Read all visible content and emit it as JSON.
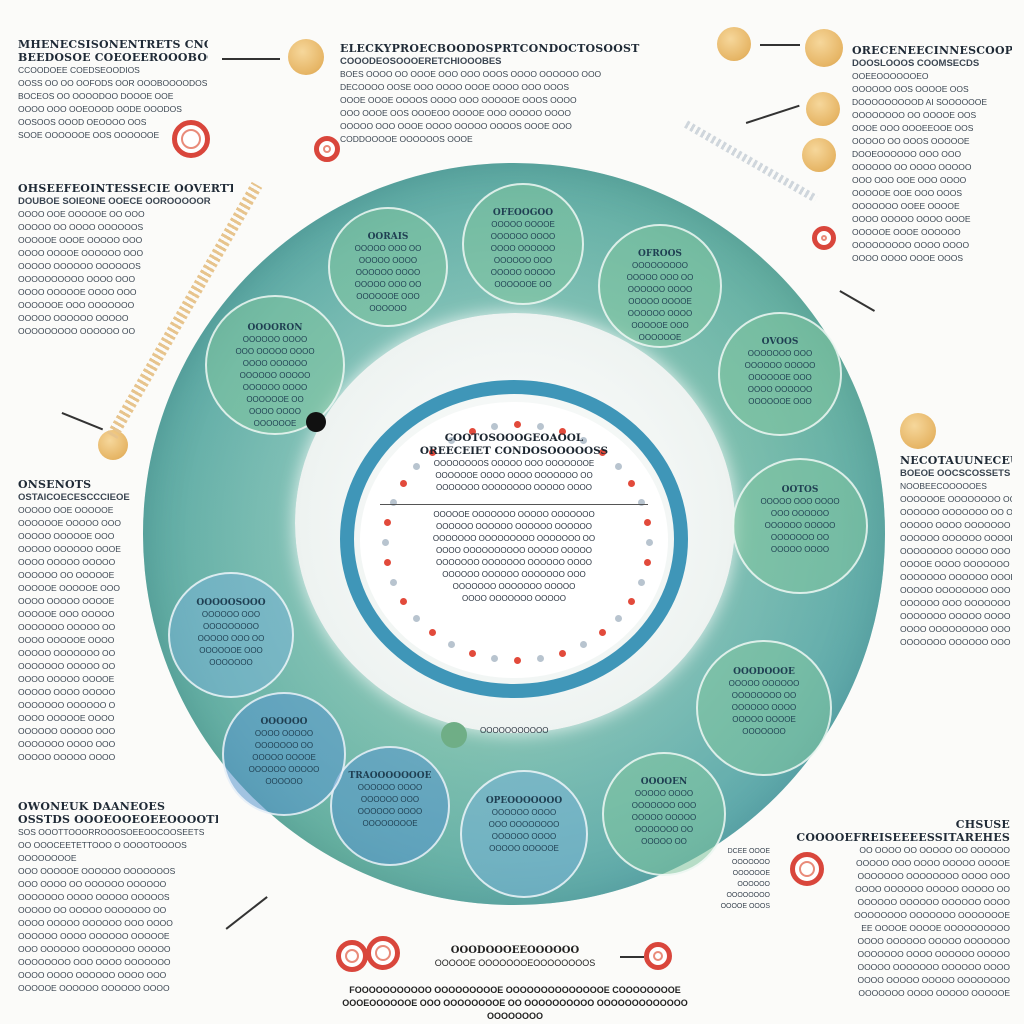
{
  "colors": {
    "ring_teal": "#5aa8a6",
    "ring_green": "#80c49e",
    "ring_blue": "#3f96b8",
    "gold": "#e6b565",
    "red": "#d9463c"
  },
  "panels": {
    "top_left": {
      "title": "MHENECSISONENTRETS CNOTIES",
      "sub": "BEEDOSOE COEOEEROOOBOORY",
      "lines": [
        "CCOODOEE COEDSEOODIOS",
        "OOSS OO OO OOFODS OOR OOOBOOOODOS",
        "BOCEOS OO OOOODOO DOOOE OOE",
        "OOOO OOO OOEOOOD OODE OOODOS",
        "OOSOOS OOOD OEOOOO OOS",
        "SOOE OOOOOOE OOS OOOOOOE"
      ]
    },
    "top_center": {
      "title": "ELECKYPROECBOODOSPRTCONDOCTOSOOST",
      "sub": "COOODEOSOOOERETCHIOOOBES",
      "lines": [
        "BOES OOOO OO OOOE OOO OOO OOOS OOOO OOOOOO OOO",
        "DECOOOO OOSE OOO OOOO OOOE OOOO OOO OOOS",
        "OOOE OOOE OOOOS OOOO OOO OOOOOE OOOS OOOO",
        "OOO OOOE OOS OOOEOO OOOOE OOO OOOOO OOOO",
        "OOOOO OOO OOOE OOOO OOOOO OOOOS OOOE OOO",
        "CODDOOOOE OOOOOOS OOOE"
      ]
    },
    "top_right": {
      "title": "ORECENEECINNESCOOPLATSS",
      "sub": "DOOSLOOOS COOMSECDS",
      "lines": [
        "OOEEOOOOOOEO",
        "OOOOOO OOS OOOOE OOS",
        "DOOOOOOOOOD AI SOOOOOOE",
        "OOOOOOOO OO OOOOE OOS",
        "OOOE OOO OOOEEOOE OOS",
        "OOOOO OO OOOS OOOOOE",
        "DOOEOOOOOO OOO OOO",
        "OOOOOO OO OOOO OOOOO",
        "OOO OOO OOE OOO OOOO",
        "OOOOOE OOE OOO OOOS",
        "OOOOOOO OOEE OOOOE",
        "OOOO OOOOO OOOO OOOE",
        "OOOOOE OOOE OOOOOO",
        "OOOOOOOOO OOOO OOOO",
        "OOOO OOOO OOOE OOOS"
      ]
    },
    "left_mid": {
      "title": "OHSEEFEOINTESSECIE OOVERTTITHECOTTS",
      "sub": "DOUBOE SOIEONE OOECE OOROOOOOR",
      "lines": [
        "OOOO OOE OOOOOE OO OOO",
        "OOOOO OO OOOO OOOOOOS",
        "OOOOOE OOOE OOOOO OOO",
        "OOOO OOOOE OOOOOO OOO",
        "OOOOO OOOOOO OOOOOOS",
        "OOOOOOOOOO OOOO OOO",
        "OOOO OOOOOE OOOO OOO",
        "OOOOOOE OOO OOOOOOO",
        "OOOOO OOOOOO OOOOO",
        "OOOOOOOOO OOOOOO OO"
      ]
    },
    "left_lower": {
      "title": "ONSENOTS",
      "sub": "OSTAICOECESCCCIEOE",
      "lines": [
        "OOOOO OOE OOOOOE",
        "OOOOOOE OOOOO OOO",
        "OOOOO OOOOOE OOO",
        "OOOOO OOOOOO OOOE",
        "OOOO OOOOO OOOOO",
        "OOOOOO OO OOOOOE",
        "OOOOOE OOOOOE OOO",
        "OOOO OOOOO OOOOE",
        "OOOOOE OOO OOOOO",
        "OOOOOOO OOOOO OO",
        "OOOO OOOOOE OOOO",
        "OOOOO OOOOOOO OO",
        "OOOOOOO OOOOO OO",
        "OOOO OOOOO OOOOE",
        "OOOOO OOOO OOOOO",
        "OOOOOOO OOOOOO O",
        "OOOO OOOOOE OOOO",
        "OOOOOO OOOOO OOO",
        "OOOOOOO OOOO OOO",
        "OOOOO OOOOO OOOO"
      ]
    },
    "bottom_left": {
      "title": "OWONEUK DAANEOES",
      "sub": "OSSTDS OOOEOOEOEEOOOOTERS",
      "lines": [
        "SOS OOOTTOOORROOOSOEEOOCOOSEETS",
        "OO OOOCEETETTOOO O OOOOTOOOOS",
        "OOOOOOOOE",
        "OOO OOOOOE OOOOOO OOOOOOOS",
        "OOO OOOO OO OOOOOO OOOOOO",
        "OOOOOOO OOOO OOOOO OOOOOS",
        "OOOOO OO OOOOO OOOOOOO OO",
        "OOOO OOOOO OOOOOO OOO OOOO",
        "OOOOOO OOOO OOOOOO OOOOOE",
        "OOO OOOOOO OOOOOOOO OOOOO",
        "OOOOOOOO OOO OOOO OOOOOOO",
        "OOOO OOOO OOOOOO OOOO OOO",
        "OOOOOE OOOOOO OOOOOO OOOO"
      ]
    },
    "right_mid": {
      "title": "NECOTAUUNECEUTES",
      "sub": "BOEOE OOCSCOSSETS",
      "lines": [
        "NOOBEECOOOOOES",
        "OOOOOOE OOOOOOOO OO",
        "OOOOOO OOOOOOO OO OO",
        "OOOOO OOOO OOOOOOO",
        "OOOOOO OOOOOO OOOOE",
        "OOOOOOOO OOOOO OOO",
        "OOOOE OOOO OOOOOOO",
        "OOOOOOO OOOOOO OOOE",
        "OOOOO OOOOOOOO OOO",
        "OOOOOO OOO OOOOOOO",
        "OOOOOOO OOOOO OOOO",
        "OOOO OOOOOOOOO OOO",
        "OOOOOOO OOOOOO OOO"
      ]
    },
    "bottom_right": {
      "title": "CHSUSE",
      "sub": "COOOOEFREISEEEESSITAREHES",
      "lines": [
        "OO OOOO OO OOOOO OO OOOOOO",
        "OOOOO OOO OOOO OOOOO OOOOE",
        "OOOOOOO OOOOOOOO OOOO OOO",
        "OOOO OOOOOO OOOOO OOOOO OO",
        "OOOOOO OOOOOO OOOOOO OOOO",
        "OOOOOOOO OOOOOOO OOOOOOOE",
        "EE OOOOE OOOOE OOOOOOOOOO",
        "OOOO OOOOOO OOOOO OOOOOOO",
        "OOOOOOO OOOO OOOOOO OOOOO",
        "OOOOO OOOOOOO OOOOOO OOOO",
        "OOOO OOOOO OOOOO OOOOOOOO",
        "OOOOOOO OOOO OOOOO OOOOOE"
      ]
    },
    "bottom_right_small": {
      "lines": [
        "DCEE OOOE",
        "OOOOOOO",
        "OOOOOOE",
        "OOOOOO",
        "OOOOOOOO",
        "OOOOE OOOS"
      ]
    }
  },
  "bubbles": [
    {
      "title": "OOOORON",
      "lines": [
        "OOOOOO OOOO",
        "OOO OOOOO OOOO",
        "OOOO OOOOOO",
        "OOOOOO OOOOO",
        "OOOOOO OOOO",
        "OOOOOOE OO",
        "OOOO OOOO",
        "OOOOOOE"
      ]
    },
    {
      "title": "OORAIS",
      "lines": [
        "OOOOO OOO OO",
        "OOOOO OOOO",
        "OOOOOO OOOO",
        "OOOOO OOO OO",
        "OOOOOOE OOO",
        "OOOOOO"
      ]
    },
    {
      "title": "OFEOOGOO",
      "lines": [
        "OOOOO OOOOE",
        "OOOOOO OOOO",
        "OOOO OOOOOO",
        "OOOOOO OOO",
        "OOOOO OOOOO",
        "OOOOOOE OO"
      ]
    },
    {
      "title": "OFROOS",
      "lines": [
        "OOOOOOOOO",
        "OOOOO OOO OO",
        "OOOOOO OOOO",
        "OOOOO OOOOE",
        "OOOOOO OOOO",
        "OOOOOE OOO",
        "OOOOOOE"
      ]
    },
    {
      "title": "OVOOS",
      "lines": [
        "OOOOOOO OOO",
        "OOOOOO OOOOO",
        "OOOOOOE OOO",
        "OOOO OOOOOO",
        "OOOOOOE OOO"
      ]
    },
    {
      "title": "OOTOS",
      "lines": [
        "OOOOO OOO OOOO",
        "OOO OOOOOO",
        "OOOOOO OOOOO",
        "OOOOOOO OO",
        "OOOOO OOOO"
      ]
    },
    {
      "title": "OOODOOOE",
      "lines": [
        "OOOOO OOOOOO",
        "OOOOOOOO OO",
        "OOOOOO OOOO",
        "OOOOO OOOOE",
        "OOOOOOO"
      ]
    },
    {
      "title": "OOOOEN",
      "lines": [
        "OOOOO OOOO",
        "OOOOOOO OOO",
        "OOOOO OOOOO",
        "OOOOOOO OO",
        "OOOOO OO"
      ]
    },
    {
      "title": "OPEOOOOOOO",
      "lines": [
        "OOOOOO OOOO",
        "OOO OOOOOOOO",
        "OOOOOO OOOO",
        "OOOOO OOOOOE"
      ]
    },
    {
      "title": "TRAOOOOOOOE",
      "lines": [
        "OOOOOO OOOO",
        "OOOOOO OOO",
        "OOOOOO OOOO",
        "OOOOOOOOE"
      ]
    },
    {
      "title": "OOOOOO",
      "lines": [
        "OOOO OOOOO",
        "OOOOOOO OO",
        "OOOOO OOOOE",
        "OOOOOO OOOOO",
        "OOOOOO"
      ]
    },
    {
      "title": "OOOOOSOOO",
      "lines": [
        "OOOOOO OOO",
        "OOOOOOOOO",
        "OOOOO OOO OO",
        "OOOOOOE OOO",
        "OOOOOOO"
      ]
    }
  ],
  "center": {
    "title": "COOTOSOOOGEOAOOL",
    "sub": "OREECEIET CONDOSOOOOOSS",
    "lines": [
      "OOOOOOOOS OOOOO OOO OOOOOOOE",
      "OOOOOOE OOOO OOOO OOOOOOO OO",
      "OOOOOOO OOOOOOOO OOOOO OOOO",
      "OOOOOE OOOOOOO OOOOO OOOOOOO",
      "OOOOOO OOOOOO OOOOOO OOOOOO",
      "OOOOOOO OOOOOOOOO OOOOOOO OO",
      "OOOO OOOOOOOOOO OOOOO OOOOO",
      "OOOOOOO OOOOOOO OOOOOO OOOO",
      "OOOOOO OOOOOO OOOOOOO OOO",
      "OOOOOOO OOOOOOO OOOOO",
      "OOOO OOOOOOO OOOOO"
    ]
  },
  "center_caption": "OOOOOOOOOOO",
  "bottom_caption": {
    "title": "OOODOOOEEOOOOOO",
    "sub": "OOOOOE OOOOOOOEOOOOOOOOS",
    "lines": [
      "FOOOOOOOOOOO OOOOOOOOOE OOOOOOOOOOOOOOE COOOOOOOOE OOOE",
      "OOOOOOE OOO OOOOOOOOE OO OOOOOOOOOO OOOOOOOOOOOOO OOOOOOOO"
    ]
  }
}
